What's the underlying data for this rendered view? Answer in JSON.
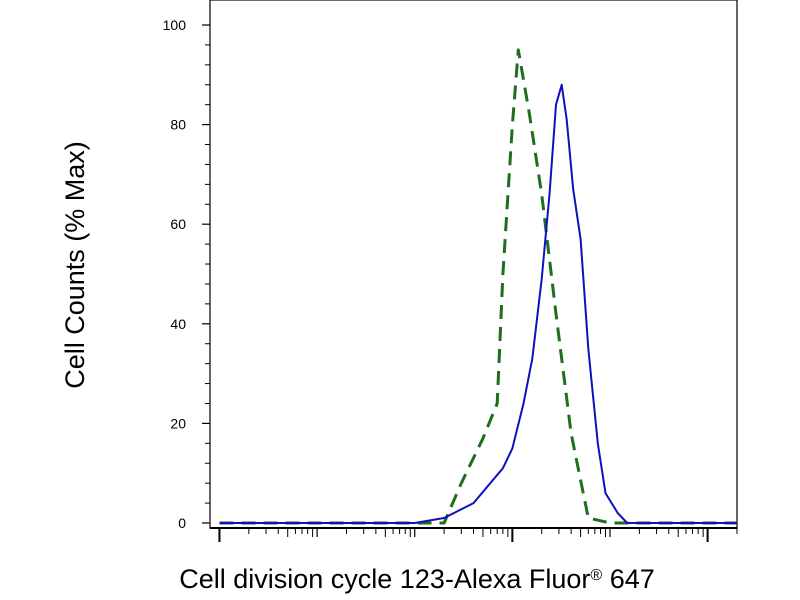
{
  "chart_data": {
    "type": "line",
    "xlabel": "Cell division cycle 123-Alexa Fluor",
    "xlabel_mark": "®",
    "xlabel_suffix": " 647",
    "ylabel": "Cell Counts (% Max)",
    "ylim": [
      0,
      100
    ],
    "yticks": [
      0,
      20,
      40,
      60,
      80,
      100
    ],
    "yticklabels": [
      "0",
      "20",
      "40",
      "60",
      "80",
      "100"
    ],
    "x_scale": "log",
    "xlim": [
      0.8,
      200000
    ],
    "x_major_ticks": [
      1,
      1000,
      100000
    ],
    "grid": false,
    "legend": "none",
    "series": [
      {
        "style": "dashed",
        "color": "#1e6e1e",
        "x": [
          1,
          200,
          300,
          500,
          700,
          800,
          1000,
          1150,
          1300,
          1500,
          2000,
          2800,
          4000,
          6000,
          10000,
          200000
        ],
        "y": [
          0,
          0,
          8,
          17,
          24,
          50,
          80,
          95,
          89,
          82,
          66,
          42,
          18,
          1,
          0,
          0
        ]
      },
      {
        "style": "solid",
        "color": "#1010c0",
        "x": [
          1,
          100,
          200,
          400,
          800,
          1000,
          1300,
          1600,
          2000,
          2400,
          2800,
          3200,
          3600,
          4200,
          5000,
          6000,
          7500,
          9000,
          12000,
          15000,
          30000,
          200000
        ],
        "y": [
          0,
          0,
          1,
          4,
          11,
          15,
          24,
          33,
          49,
          66,
          84,
          88,
          81,
          67,
          57,
          35,
          16,
          6,
          2,
          0,
          0,
          0
        ]
      }
    ]
  }
}
